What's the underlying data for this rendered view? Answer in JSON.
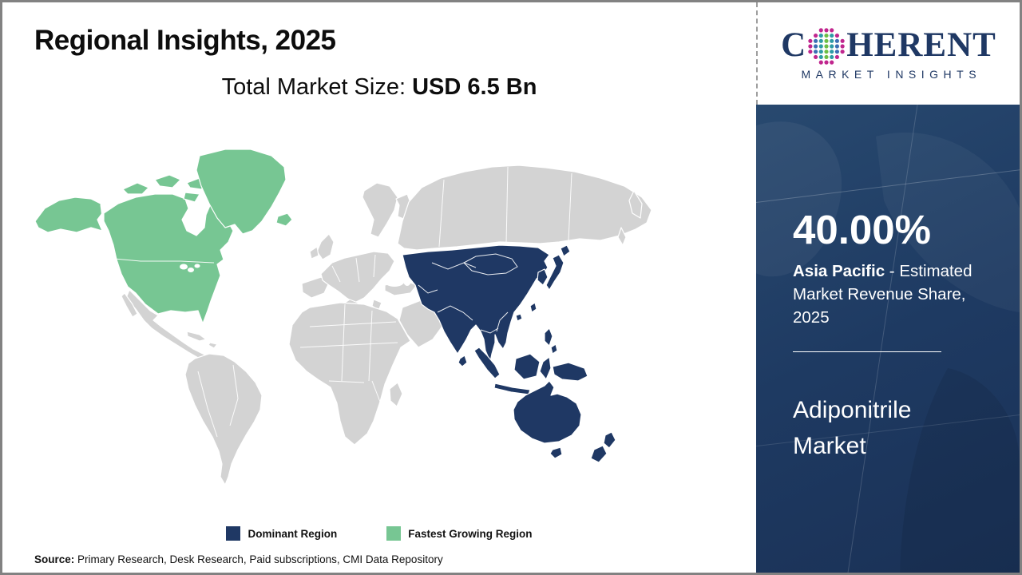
{
  "title": "Regional Insights, 2025",
  "subtitle": {
    "label": "Total Market Size: ",
    "value": "USD 6.5 Bn"
  },
  "logo": {
    "brand_pre": "C",
    "brand_post": "HERENT",
    "tagline": "MARKET INSIGHTS",
    "globe_colors": {
      "outer": "#C0268E",
      "teal": "#2E9BA6",
      "green": "#6CBE45",
      "blue": "#3B6FB5"
    }
  },
  "map": {
    "colors": {
      "dominant": "#1F3864",
      "fastest": "#77C693",
      "other": "#D3D3D3",
      "ocean": "#FFFFFF"
    },
    "regions": {
      "dominant": "Asia Pacific",
      "fastest_growing": "North America"
    }
  },
  "legend": {
    "items": [
      {
        "label": "Dominant Region",
        "color": "#1F3864"
      },
      {
        "label": "Fastest Growing Region",
        "color": "#77C693"
      }
    ]
  },
  "sidebar": {
    "share_value": "40.00%",
    "share_region": "Asia Pacific",
    "share_rest": "- Estimated Market Revenue Share, 2025",
    "market_name": "Adiponitrile Market"
  },
  "source": {
    "label": "Source:",
    "text": "Primary Research, Desk Research, Paid subscriptions, CMI Data Repository"
  }
}
